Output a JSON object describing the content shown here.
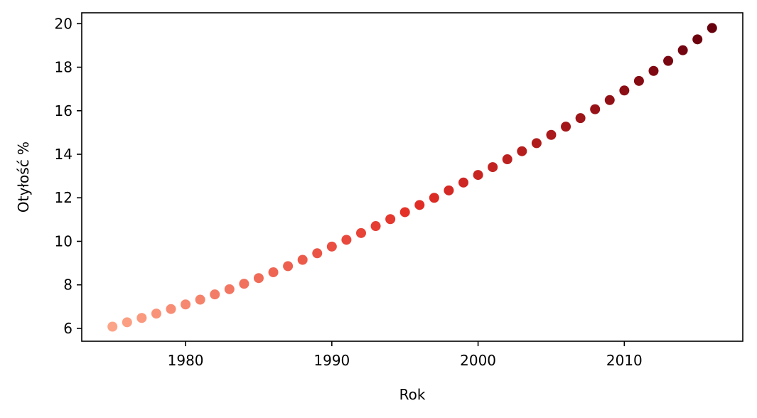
{
  "chart_data": {
    "type": "scatter",
    "xlabel": "Rok",
    "ylabel": "Otyłość %",
    "xlim": [
      1972.9,
      2018.1
    ],
    "ylim": [
      5.41,
      20.5
    ],
    "xticks": [
      1980,
      1990,
      2000,
      2010
    ],
    "yticks": [
      6,
      8,
      10,
      12,
      14,
      16,
      18,
      20
    ],
    "grid": false,
    "colormap": {
      "name": "Reds",
      "low": "#fca487",
      "mid": "#e32f27",
      "high": "#67000d"
    },
    "x": [
      1975,
      1976,
      1977,
      1978,
      1979,
      1980,
      1981,
      1982,
      1983,
      1984,
      1985,
      1986,
      1987,
      1988,
      1989,
      1990,
      1991,
      1992,
      1993,
      1994,
      1995,
      1996,
      1997,
      1998,
      1999,
      2000,
      2001,
      2002,
      2003,
      2004,
      2005,
      2006,
      2007,
      2008,
      2009,
      2010,
      2011,
      2012,
      2013,
      2014,
      2015,
      2016
    ],
    "y": [
      6.08,
      6.28,
      6.48,
      6.68,
      6.89,
      7.1,
      7.32,
      7.56,
      7.8,
      8.05,
      8.31,
      8.58,
      8.86,
      9.15,
      9.45,
      9.76,
      10.07,
      10.38,
      10.7,
      11.02,
      11.34,
      11.67,
      12.0,
      12.34,
      12.7,
      13.05,
      13.41,
      13.77,
      14.14,
      14.51,
      14.89,
      15.27,
      15.66,
      16.07,
      16.49,
      16.93,
      17.37,
      17.83,
      18.29,
      18.78,
      19.28,
      19.8
    ]
  }
}
